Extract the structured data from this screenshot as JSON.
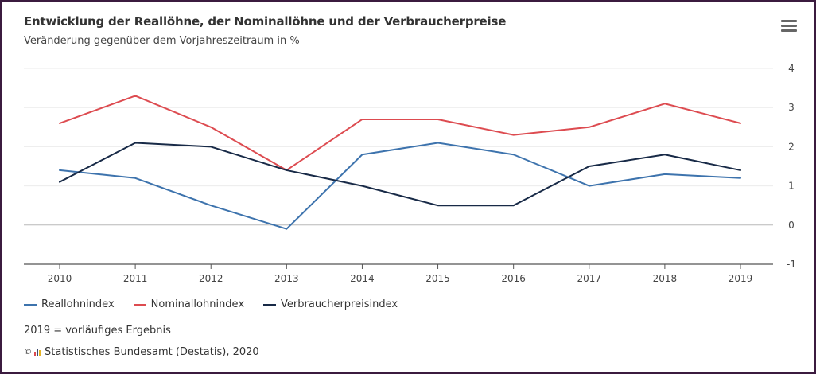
{
  "header": {
    "title": "Entwicklung der Reallöhne, der Nominallöhne und der Verbraucherpreise",
    "subtitle": "Veränderung gegenüber dem Vorjahreszeitraum in %",
    "menu_icon": "hamburger-menu-icon"
  },
  "footer": {
    "note": "2019 = vorläufiges Ergebnis",
    "copyright_symbol": "©",
    "credits": "Statistisches Bundesamt (Destatis), 2020"
  },
  "chart_data": {
    "type": "line",
    "title": "Entwicklung der Reallöhne, der Nominallöhne und der Verbraucherpreise",
    "subtitle": "Veränderung gegenüber dem Vorjahreszeitraum in %",
    "xlabel": "",
    "ylabel": "",
    "x": [
      "2010",
      "2011",
      "2012",
      "2013",
      "2014",
      "2015",
      "2016",
      "2017",
      "2018",
      "2019"
    ],
    "ylim": [
      -1,
      4
    ],
    "yticks": [
      "4",
      "3",
      "2",
      "1",
      "0",
      "-1"
    ],
    "y_axis_side": "right",
    "grid": true,
    "legend_position": "bottom-left",
    "series": [
      {
        "name": "Reallohnindex",
        "color": "#3d73ad",
        "values": [
          1.4,
          1.2,
          0.5,
          -0.1,
          1.8,
          2.1,
          1.8,
          1.0,
          1.3,
          1.2
        ]
      },
      {
        "name": "Nominallohnindex",
        "color": "#dd4b50",
        "values": [
          2.6,
          3.3,
          2.5,
          1.4,
          2.7,
          2.7,
          2.3,
          2.5,
          3.1,
          2.6
        ]
      },
      {
        "name": "Verbraucherpreisindex",
        "color": "#182a47",
        "values": [
          1.1,
          2.1,
          2.0,
          1.4,
          1.0,
          0.5,
          0.5,
          1.5,
          1.8,
          1.4
        ]
      }
    ]
  }
}
